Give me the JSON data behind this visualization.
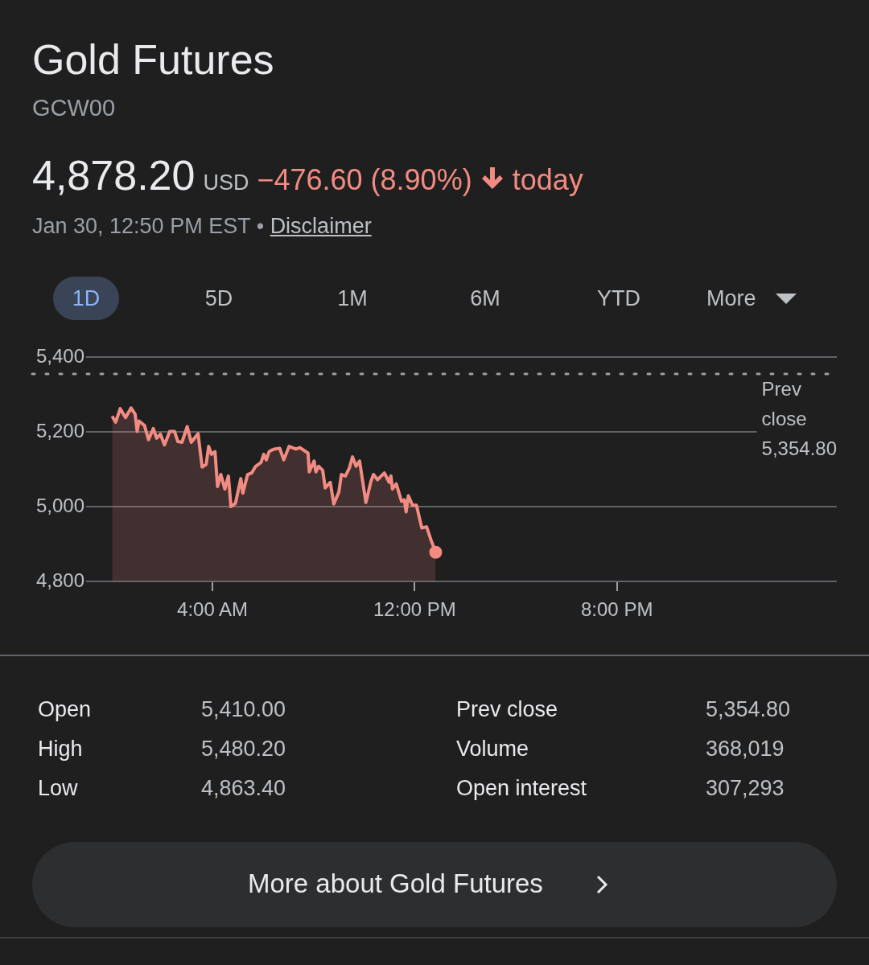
{
  "chart_data": {
    "type": "area",
    "title": "Gold Futures",
    "subtitle": "GCW00",
    "annotations": [
      "4,878.20",
      "USD",
      "−476.60 (8.90%)",
      "today",
      "Jan 30, 12:50 PM EST •",
      "Disclaimer",
      "1D",
      "5D",
      "1M",
      "6M",
      "YTD",
      "More",
      "Open",
      "5,410.00",
      "High",
      "5,480.20",
      "Low",
      "4,863.40",
      "Prev close",
      "5,354.80",
      "Volume",
      "368,019",
      "Open interest",
      "307,293",
      "More about Gold Futures"
    ],
    "xlim": [
      -1,
      28.7
    ],
    "xticks": [
      {
        "value": 4,
        "label": "4:00 AM"
      },
      {
        "value": 12,
        "label": "12:00 PM"
      },
      {
        "value": 20,
        "label": "8:00 PM"
      }
    ],
    "ylim": [
      4800,
      5400
    ],
    "yticks": [
      {
        "value": 4800,
        "label": "4,800"
      },
      {
        "value": 5000,
        "label": "5,000"
      },
      {
        "value": 5200,
        "label": "5,200"
      },
      {
        "value": 5400,
        "label": "5,400"
      }
    ],
    "grid": "y",
    "legend": false,
    "ref_lines": [
      {
        "axis": "y",
        "value": 5354.8,
        "label": "Prev close 5,354.80",
        "color": "#9aa0a6",
        "line_style": "dotted"
      }
    ],
    "series": [
      {
        "color": "#f28b82",
        "x": [
          0.03,
          0.17,
          0.35,
          0.56,
          0.78,
          0.94,
          1.02,
          1.09,
          1.31,
          1.47,
          1.66,
          1.79,
          1.94,
          2.1,
          2.31,
          2.5,
          2.63,
          2.79,
          3.0,
          3.16,
          3.43,
          3.59,
          3.75,
          3.85,
          3.96,
          4.1,
          4.2,
          4.33,
          4.49,
          4.63,
          4.73,
          4.91,
          5.12,
          5.2,
          5.39,
          5.55,
          5.71,
          5.92,
          6.03,
          6.13,
          6.24,
          6.34,
          6.45,
          6.66,
          6.82,
          7.03,
          7.3,
          7.46,
          7.78,
          7.83,
          8.02,
          8.09,
          8.2,
          8.36,
          8.46,
          8.66,
          8.8,
          9.0,
          9.1,
          9.26,
          9.42,
          9.54,
          9.68,
          9.82,
          10.07,
          10.27,
          10.37,
          10.53,
          10.8,
          10.99,
          11.06,
          11.12,
          11.27,
          11.48,
          11.59,
          11.66,
          11.75,
          11.91,
          12.07,
          12.28,
          12.47,
          12.65,
          12.83
        ],
        "values": [
          5242,
          5226,
          5262,
          5238,
          5264,
          5247,
          5201,
          5229,
          5217,
          5179,
          5209,
          5183,
          5194,
          5165,
          5201,
          5201,
          5174,
          5172,
          5214,
          5172,
          5195,
          5106,
          5113,
          5161,
          5140,
          5147,
          5054,
          5086,
          5047,
          5082,
          5000,
          5009,
          5075,
          5036,
          5086,
          5090,
          5108,
          5118,
          5140,
          5125,
          5147,
          5151,
          5154,
          5156,
          5125,
          5161,
          5154,
          5158,
          5143,
          5093,
          5122,
          5093,
          5108,
          5097,
          5050,
          5065,
          5007,
          5039,
          5086,
          5082,
          5104,
          5133,
          5108,
          5122,
          5011,
          5068,
          5086,
          5072,
          5090,
          5065,
          5082,
          5047,
          5061,
          5014,
          5018,
          4986,
          5029,
          5004,
          5004,
          4943,
          4946,
          4910,
          4878
        ]
      }
    ]
  }
}
